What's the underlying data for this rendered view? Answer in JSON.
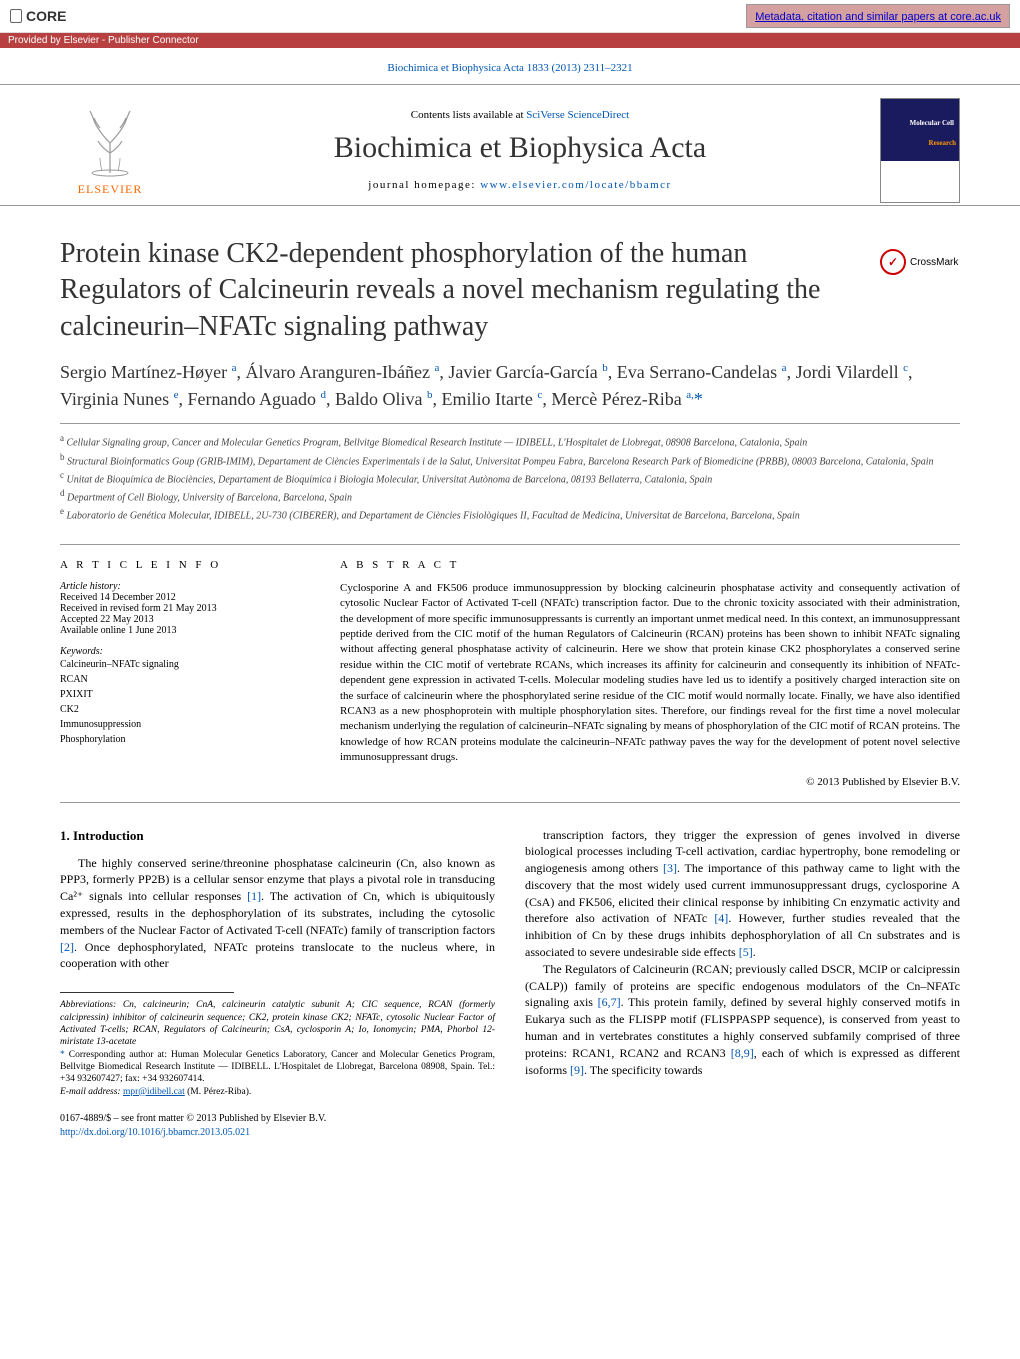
{
  "core": {
    "logo_text": "CORE",
    "provided_by": "Provided by Elsevier - Publisher Connector",
    "metadata_link": "Metadata, citation and similar papers at core.ac.uk"
  },
  "journal": {
    "citation": "Biochimica et Biophysica Acta 1833 (2013) 2311–2321",
    "contents_text": "Contents lists available at ",
    "sciencedirect": "SciVerse ScienceDirect",
    "title": "Biochimica et Biophysica Acta",
    "homepage_label": "journal homepage: ",
    "homepage_url": "www.elsevier.com/locate/bbamcr",
    "elsevier": "ELSEVIER",
    "cover_text1": "Molecular Cell",
    "cover_text2": "Research"
  },
  "article": {
    "title": "Protein kinase CK2-dependent phosphorylation of the human Regulators of Calcineurin reveals a novel mechanism regulating the calcineurin–NFATc signaling pathway",
    "crossmark": "CrossMark",
    "authors_html": "Sergio Martínez-Høyer <sup>a</sup>, Álvaro Aranguren-Ibáñez <sup>a</sup>, Javier García-García <sup>b</sup>, Eva Serrano-Candelas <sup>a</sup>, Jordi Vilardell <sup>c</sup>, Virginia Nunes <sup>e</sup>, Fernando Aguado <sup>d</sup>, Baldo Oliva <sup>b</sup>, Emilio Itarte <sup>c</sup>, Mercè Pérez-Riba <sup>a,</sup><span class='corresponding'>*</span>"
  },
  "affiliations": {
    "a": "Cellular Signaling group, Cancer and Molecular Genetics Program, Bellvitge Biomedical Research Institute — IDIBELL, L'Hospitalet de Llobregat, 08908 Barcelona, Catalonia, Spain",
    "b": "Structural Bioinformatics Goup (GRIB-IMIM), Departament de Ciències Experimentals i de la Salut, Universitat Pompeu Fabra, Barcelona Research Park of Biomedicine (PRBB), 08003 Barcelona, Catalonia, Spain",
    "c": "Unitat de Bioquímica de Biociències, Departament de Bioquímica i Biologia Molecular, Universitat Autònoma de Barcelona, 08193 Bellaterra, Catalonia, Spain",
    "d": "Department of Cell Biology, University of Barcelona, Barcelona, Spain",
    "e": "Laboratorio de Genética Molecular, IDIBELL, 2U-730 (CIBERER), and Departament de Ciències Fisiològiques II, Facultad de Medicina, Universitat de Barcelona, Barcelona, Spain"
  },
  "info": {
    "heading": "A R T I C L E   I N F O",
    "history_label": "Article history:",
    "received": "Received 14 December 2012",
    "revised": "Received in revised form 21 May 2013",
    "accepted": "Accepted 22 May 2013",
    "online": "Available online 1 June 2013",
    "keywords_label": "Keywords:",
    "keywords": [
      "Calcineurin–NFATc signaling",
      "RCAN",
      "PXIXIT",
      "CK2",
      "Immunosuppression",
      "Phosphorylation"
    ]
  },
  "abstract": {
    "heading": "A B S T R A C T",
    "text": "Cyclosporine A and FK506 produce immunosuppression by blocking calcineurin phosphatase activity and consequently activation of cytosolic Nuclear Factor of Activated T-cell (NFATc) transcription factor. Due to the chronic toxicity associated with their administration, the development of more specific immunosuppressants is currently an important unmet medical need. In this context, an immunosuppressant peptide derived from the CIC motif of the human Regulators of Calcineurin (RCAN) proteins has been shown to inhibit NFATc signaling without affecting general phosphatase activity of calcineurin. Here we show that protein kinase CK2 phosphorylates a conserved serine residue within the CIC motif of vertebrate RCANs, which increases its affinity for calcineurin and consequently its inhibition of NFATc-dependent gene expression in activated T-cells. Molecular modeling studies have led us to identify a positively charged interaction site on the surface of calcineurin where the phosphorylated serine residue of the CIC motif would normally locate. Finally, we have also identified RCAN3 as a new phosphoprotein with multiple phosphorylation sites. Therefore, our findings reveal for the first time a novel molecular mechanism underlying the regulation of calcineurin–NFATc signaling by means of phosphorylation of the CIC motif of RCAN proteins. The knowledge of how RCAN proteins modulate the calcineurin–NFATc pathway paves the way for the development of potent novel selective immunosuppressant drugs.",
    "copyright": "© 2013 Published by Elsevier B.V."
  },
  "body": {
    "section_heading": "1. Introduction",
    "col1_p1": "The highly conserved serine/threonine phosphatase calcineurin (Cn, also known as PPP3, formerly PP2B) is a cellular sensor enzyme that plays a pivotal role in transducing Ca²⁺ signals into cellular responses [1]. The activation of Cn, which is ubiquitously expressed, results in the dephosphorylation of its substrates, including the cytosolic members of the Nuclear Factor of Activated T-cell (NFATc) family of transcription factors [2]. Once dephosphorylated, NFATc proteins translocate to the nucleus where, in cooperation with other",
    "col2_p1": "transcription factors, they trigger the expression of genes involved in diverse biological processes including T-cell activation, cardiac hypertrophy, bone remodeling or angiogenesis among others [3]. The importance of this pathway came to light with the discovery that the most widely used current immunosuppressant drugs, cyclosporine A (CsA) and FK506, elicited their clinical response by inhibiting Cn enzymatic activity and therefore also activation of NFATc [4]. However, further studies revealed that the inhibition of Cn by these drugs inhibits dephosphorylation of all Cn substrates and is associated to severe undesirable side effects [5].",
    "col2_p2": "The Regulators of Calcineurin (RCAN; previously called DSCR, MCIP or calcipressin (CALP)) family of proteins are specific endogenous modulators of the Cn–NFATc signaling axis [6,7]. This protein family, defined by several highly conserved motifs in Eukarya such as the FLISPP motif (FLISPPASPP sequence), is conserved from yeast to human and in vertebrates constitutes a highly conserved subfamily comprised of three proteins: RCAN1, RCAN2 and RCAN3 [8,9], each of which is expressed as different isoforms [9]. The specificity towards"
  },
  "footnotes": {
    "abbreviations": "Abbreviations: Cn, calcineurin; CnA, calcineurin catalytic subunit A; CIC sequence, RCAN (formerly calcipressin) inhibitor of calcineurin sequence; CK2, protein kinase CK2; NFATc, cytosolic Nuclear Factor of Activated T-cells; RCAN, Regulators of Calcineurin; CsA, cyclosporin A; Io, Ionomycin; PMA, Phorbol 12-miristate 13-acetate",
    "corresponding": "Corresponding author at: Human Molecular Genetics Laboratory, Cancer and Molecular Genetics Program, Bellvitge Biomedical Research Institute — IDIBELL. L'Hospitalet de Llobregat, Barcelona 08908, Spain. Tel.: +34 932607427; fax: +34 932607414.",
    "email_label": "E-mail address: ",
    "email": "mpr@idibell.cat",
    "email_name": " (M. Pérez-Riba)."
  },
  "bottom": {
    "issn": "0167-4889/$ – see front matter © 2013 Published by Elsevier B.V.",
    "doi": "http://dx.doi.org/10.1016/j.bbamcr.2013.05.021"
  }
}
